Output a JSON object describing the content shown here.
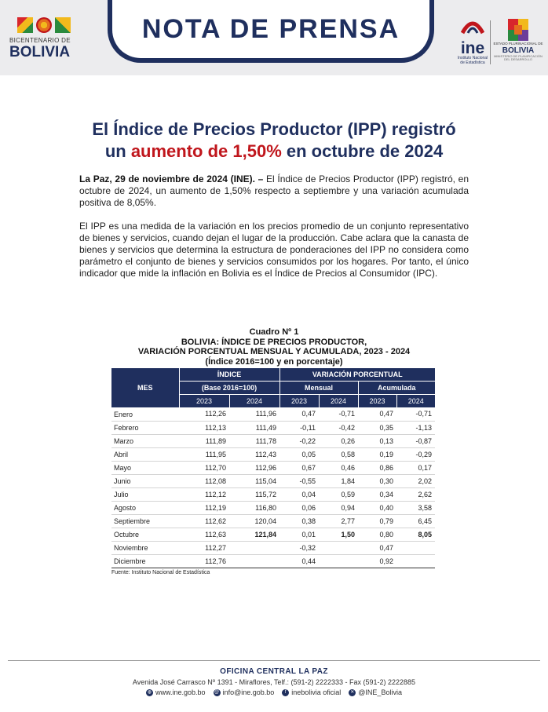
{
  "header": {
    "banner_title": "NOTA DE PRENSA",
    "bicentenario_line1": "BICENTENARIO DE",
    "bicentenario_line2": "BOLIVIA",
    "ine_word": "ine",
    "ine_sub1": "Instituto Nacional",
    "ine_sub2": "de Estadística",
    "estado_line1": "ESTADO PLURINACIONAL DE",
    "estado_line2": "BOLIVIA",
    "estado_line3": "MINISTERIO DE PLANIFICACIÓN DEL DESARROLLO",
    "colors": {
      "navy": "#1f2f5e",
      "red": "#c0161c"
    }
  },
  "title": {
    "line1": "El Índice de Precios Productor (IPP) registró",
    "line2_pre": "un ",
    "line2_highlight": "aumento de 1,50%",
    "line2_post": " en octubre de 2024"
  },
  "body": {
    "p1_lead": "La Paz, 29 de noviembre de 2024 (INE). –",
    "p1_text": " El Índice de Precios Productor (IPP) registró, en octubre de 2024, un aumento de 1,50% respecto a septiembre y una variación acumulada positiva de 8,05%.",
    "p2_text": "El IPP es una medida de la variación en los precios promedio de un conjunto representativo de bienes y servicios, cuando dejan el lugar de la producción. Cabe aclara que la canasta de bienes y servicios que determina la estructura de ponderaciones del IPP no considera como parámetro el conjunto de bienes y servicios consumidos por los hogares. Por tanto, el único indicador que mide la inflación en Bolivia es el Índice de Precios al Consumidor (IPC)."
  },
  "table": {
    "caption1": "Cuadro Nº 1",
    "caption2": "BOLIVIA: ÍNDICE DE PRECIOS PRODUCTOR,",
    "caption3": "VARIACIÓN PORCENTUAL MENSUAL Y ACUMULADA, 2023 - 2024",
    "caption4": "(Índice 2016=100 y en porcentaje)",
    "header_mes": "MES",
    "header_indice": "ÍNDICE",
    "header_base": "(Base 2016=100)",
    "header_variacion": "VARIACIÓN PORCENTUAL",
    "header_mensual": "Mensual",
    "header_acumulada": "Acumulada",
    "years": [
      "2023",
      "2024",
      "2023",
      "2024",
      "2023",
      "2024"
    ],
    "rows": [
      {
        "mes": "Enero",
        "i23": "112,26",
        "i24": "111,96",
        "m23": "0,47",
        "m24": "-0,71",
        "a23": "0,47",
        "a24": "-0,71"
      },
      {
        "mes": "Febrero",
        "i23": "112,13",
        "i24": "111,49",
        "m23": "-0,11",
        "m24": "-0,42",
        "a23": "0,35",
        "a24": "-1,13"
      },
      {
        "mes": "Marzo",
        "i23": "111,89",
        "i24": "111,78",
        "m23": "-0,22",
        "m24": "0,26",
        "a23": "0,13",
        "a24": "-0,87"
      },
      {
        "mes": "Abril",
        "i23": "111,95",
        "i24": "112,43",
        "m23": "0,05",
        "m24": "0,58",
        "a23": "0,19",
        "a24": "-0,29"
      },
      {
        "mes": "Mayo",
        "i23": "112,70",
        "i24": "112,96",
        "m23": "0,67",
        "m24": "0,46",
        "a23": "0,86",
        "a24": "0,17"
      },
      {
        "mes": "Junio",
        "i23": "112,08",
        "i24": "115,04",
        "m23": "-0,55",
        "m24": "1,84",
        "a23": "0,30",
        "a24": "2,02"
      },
      {
        "mes": "Julio",
        "i23": "112,12",
        "i24": "115,72",
        "m23": "0,04",
        "m24": "0,59",
        "a23": "0,34",
        "a24": "2,62"
      },
      {
        "mes": "Agosto",
        "i23": "112,19",
        "i24": "116,80",
        "m23": "0,06",
        "m24": "0,94",
        "a23": "0,40",
        "a24": "3,58"
      },
      {
        "mes": "Septiembre",
        "i23": "112,62",
        "i24": "120,04",
        "m23": "0,38",
        "m24": "2,77",
        "a23": "0,79",
        "a24": "6,45"
      },
      {
        "mes": "Octubre",
        "i23": "112,63",
        "i24": "121,84",
        "m23": "0,01",
        "m24": "1,50",
        "a23": "0,80",
        "a24": "8,05"
      },
      {
        "mes": "Noviembre",
        "i23": "112,27",
        "i24": "",
        "m23": "-0,32",
        "m24": "",
        "a23": "0,47",
        "a24": ""
      },
      {
        "mes": "Diciembre",
        "i23": "112,76",
        "i24": "",
        "m23": "0,44",
        "m24": "",
        "a23": "0,92",
        "a24": ""
      }
    ],
    "source": "Fuente: Instituto Nacional de Estadística"
  },
  "footer": {
    "office": "OFICINA CENTRAL LA PAZ",
    "address": "Avenida José Carrasco Nº 1391 - Miraflores, Telf.: (591-2) 2222333 - Fax (591-2) 2222885",
    "web": "www.ine.gob.bo",
    "email": "info@ine.gob.bo",
    "facebook": "inebolivia oficial",
    "twitter": "@INE_Bolivia"
  }
}
